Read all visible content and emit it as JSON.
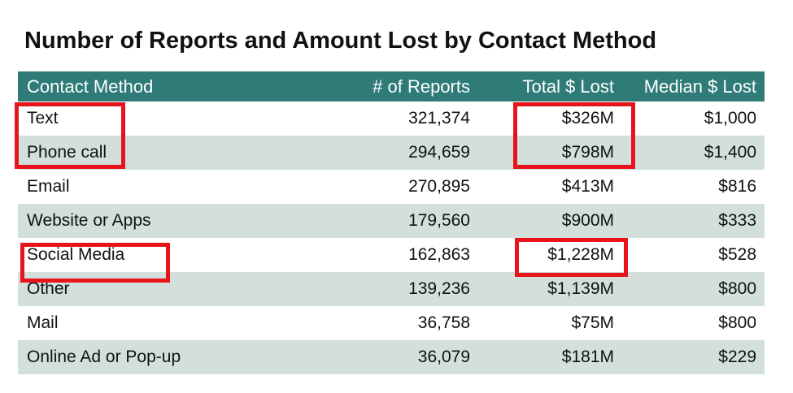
{
  "title": "Number of Reports and Amount Lost by Contact Method",
  "colors": {
    "header_bg": "#2e7b78",
    "band": "#d2dfdb",
    "highlight": "#e8141b"
  },
  "chart_data": {
    "type": "table",
    "title": "Number of Reports and Amount Lost by Contact Method",
    "columns": [
      "Contact Method",
      "# of Reports",
      "Total $ Lost",
      "Median $ Lost"
    ],
    "rows": [
      [
        "Text",
        "321,374",
        "$326M",
        "$1,000"
      ],
      [
        "Phone call",
        "294,659",
        "$798M",
        "$1,400"
      ],
      [
        "Email",
        "270,895",
        "$413M",
        "$816"
      ],
      [
        "Website or Apps",
        "179,560",
        "$900M",
        "$333"
      ],
      [
        "Social Media",
        "162,863",
        "$1,228M",
        "$528"
      ],
      [
        "Other",
        "139,236",
        "$1,139M",
        "$800"
      ],
      [
        "Mail",
        "36,758",
        "$75M",
        "$800"
      ],
      [
        "Online Ad or Pop-up",
        "36,079",
        "$181M",
        "$229"
      ]
    ]
  }
}
